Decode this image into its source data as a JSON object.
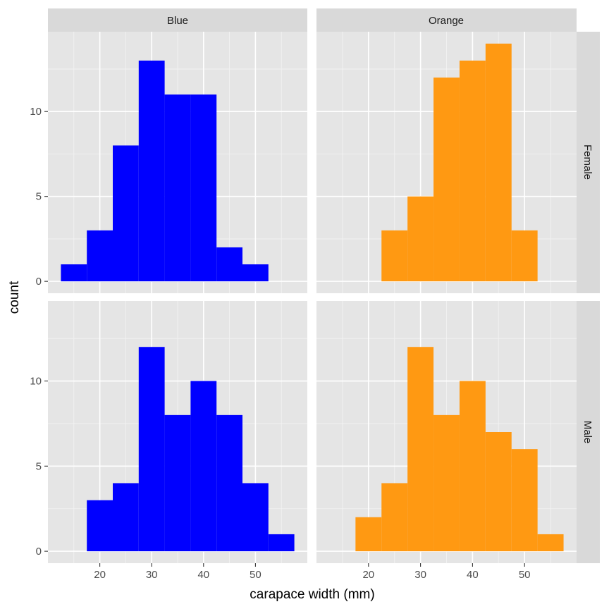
{
  "chart_data": {
    "type": "bar",
    "subtype": "faceted-histogram",
    "xlabel": "carapace width (mm)",
    "ylabel": "count",
    "xlim": [
      10,
      60
    ],
    "ylim": [
      -0.7,
      14.7
    ],
    "x_ticks": [
      20,
      30,
      40,
      50
    ],
    "y_ticks": [
      0,
      5,
      10
    ],
    "bin_width": 5,
    "bin_edges": [
      12.5,
      17.5,
      22.5,
      27.5,
      32.5,
      37.5,
      42.5,
      47.5,
      52.5,
      57.5
    ],
    "column_facets": [
      "Blue",
      "Orange"
    ],
    "row_facets": [
      "Female",
      "Male"
    ],
    "colors": {
      "Blue": "#0000ff",
      "Orange": "#ff9912"
    },
    "panel_background": "#e5e5e5",
    "strip_background": "#d9d9d9",
    "grid": true,
    "panels": [
      {
        "column": "Blue",
        "row": "Female",
        "counts": [
          1,
          3,
          8,
          13,
          11,
          11,
          2,
          1,
          0
        ]
      },
      {
        "column": "Orange",
        "row": "Female",
        "counts": [
          0,
          0,
          3,
          5,
          12,
          13,
          14,
          3,
          0
        ]
      },
      {
        "column": "Blue",
        "row": "Male",
        "counts": [
          0,
          3,
          4,
          12,
          8,
          10,
          8,
          4,
          1
        ]
      },
      {
        "column": "Orange",
        "row": "Male",
        "counts": [
          0,
          2,
          4,
          12,
          8,
          10,
          7,
          6,
          1
        ]
      }
    ]
  }
}
